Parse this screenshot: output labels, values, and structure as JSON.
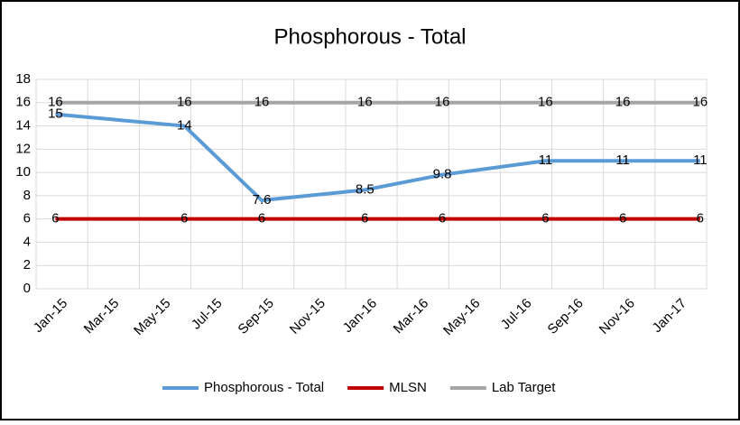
{
  "chart_data": {
    "type": "line",
    "title": "Phosphorous - Total",
    "x": [
      "Jan-15",
      "Jun-15",
      "Sep-15",
      "Jan-16",
      "Apr-16",
      "Aug-16",
      "Nov-16",
      "Feb-17"
    ],
    "xticks": [
      "Jan-15",
      "Mar-15",
      "May-15",
      "Jul-15",
      "Sep-15",
      "Nov-15",
      "Jan-16",
      "Mar-16",
      "May-16",
      "Jul-16",
      "Sep-16",
      "Nov-16",
      "Jan-17"
    ],
    "ylim": [
      0,
      18
    ],
    "yticks": [
      0,
      2,
      4,
      6,
      8,
      10,
      12,
      14,
      16,
      18
    ],
    "grid": true,
    "legend": "bottom",
    "series": [
      {
        "name": "Phosphorous - Total",
        "color": "#5b9bd5",
        "values": [
          15,
          14,
          7.6,
          8.5,
          9.8,
          11,
          11,
          11
        ]
      },
      {
        "name": "MLSN",
        "color": "#c00000",
        "values": [
          6,
          6,
          6,
          6,
          6,
          6,
          6,
          6
        ]
      },
      {
        "name": "Lab Target",
        "color": "#a5a5a5",
        "values": [
          16,
          16,
          16,
          16,
          16,
          16,
          16,
          16
        ]
      }
    ]
  }
}
